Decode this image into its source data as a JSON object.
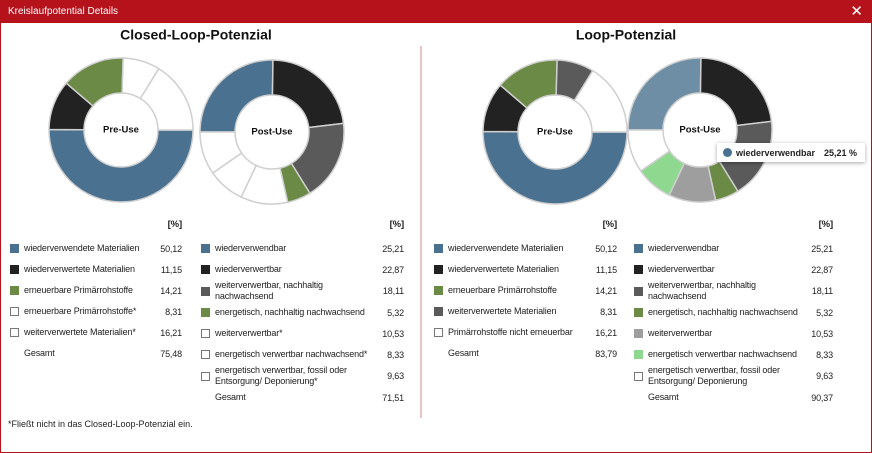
{
  "window": {
    "title": "Kreislaufpotential Details"
  },
  "panels": [
    {
      "title": "Closed-Loop-Potenzial",
      "charts": [
        {
          "center_label": "Pre-Use",
          "unit": "[%]",
          "rows": [
            {
              "name": "wiederverwendete Materialien",
              "value": {
                "value": 50.12,
                "label": "50,12"
              },
              "color": "#4a7290"
            },
            {
              "name": "wiederverwertete Materialien",
              "value": {
                "value": 11.15,
                "label": "11,15"
              },
              "color": "#222222"
            },
            {
              "name": "erneuerbare Primärrohstoffe",
              "value": {
                "value": 14.21,
                "label": "14,21"
              },
              "color": "#6a8a45"
            },
            {
              "name": "erneuerbare Primärrohstoffe*",
              "value": {
                "value": 8.31,
                "label": "8,31"
              },
              "color": "#ffffff"
            },
            {
              "name": "weiterverwertete Materialien*",
              "value": {
                "value": 16.21,
                "label": "16,21"
              },
              "color": "#ffffff"
            }
          ],
          "total": {
            "name": "Gesamt",
            "value": {
              "value": 75.48,
              "label": "75,48"
            }
          }
        },
        {
          "center_label": "Post-Use",
          "unit": "[%]",
          "rows": [
            {
              "name": "wiederverwendbar",
              "value": {
                "value": 25.21,
                "label": "25,21"
              },
              "color": "#4a7290"
            },
            {
              "name": "wiederverwertbar",
              "value": {
                "value": 22.87,
                "label": "22,87"
              },
              "color": "#222222"
            },
            {
              "name": "weiterverwertbar, nachhaltig nachwachsend",
              "value": {
                "value": 18.11,
                "label": "18,11"
              },
              "color": "#5a5a5a"
            },
            {
              "name": "energetisch, nachhaltig nachwachsend",
              "value": {
                "value": 5.32,
                "label": "5,32"
              },
              "color": "#6a8a45"
            },
            {
              "name": "weiterverwertbar*",
              "value": {
                "value": 10.53,
                "label": "10,53"
              },
              "color": "#ffffff"
            },
            {
              "name": "energetisch verwertbar nachwachsend*",
              "value": {
                "value": 8.33,
                "label": "8,33"
              },
              "color": "#ffffff"
            },
            {
              "name": "energetisch verwertbar, fossil oder Entsorgung/ Deponierung*",
              "value": {
                "value": 9.63,
                "label": "9,63"
              },
              "color": "#ffffff"
            }
          ],
          "total": {
            "name": "Gesamt",
            "value": {
              "value": 71.51,
              "label": "71,51"
            }
          }
        }
      ]
    },
    {
      "title": "Loop-Potenzial",
      "charts": [
        {
          "center_label": "Pre-Use",
          "unit": "[%]",
          "rows": [
            {
              "name": "wiederverwendete Materialien",
              "value": {
                "value": 50.12,
                "label": "50,12"
              },
              "color": "#4a7290"
            },
            {
              "name": "wiederverwertete Materialien",
              "value": {
                "value": 11.15,
                "label": "11,15"
              },
              "color": "#222222"
            },
            {
              "name": "erneuerbare Primärrohstoffe",
              "value": {
                "value": 14.21,
                "label": "14,21"
              },
              "color": "#6a8a45"
            },
            {
              "name": "weiterverwertete Materialien",
              "value": {
                "value": 8.31,
                "label": "8,31"
              },
              "color": "#5a5a5a"
            },
            {
              "name": "Primärrohstoffe nicht erneuerbar",
              "value": {
                "value": 16.21,
                "label": "16,21"
              },
              "color": "#ffffff"
            }
          ],
          "total": {
            "name": "Gesamt",
            "value": {
              "value": 83.79,
              "label": "83,79"
            }
          }
        },
        {
          "center_label": "Post-Use",
          "unit": "[%]",
          "rows": [
            {
              "name": "wiederverwendbar",
              "value": {
                "value": 25.21,
                "label": "25,21"
              },
              "color": "#4a7290"
            },
            {
              "name": "wiederverwertbar",
              "value": {
                "value": 22.87,
                "label": "22,87"
              },
              "color": "#222222"
            },
            {
              "name": "weiterverwertbar, nachhaltig nachwachsend",
              "value": {
                "value": 18.11,
                "label": "18,11"
              },
              "color": "#5a5a5a"
            },
            {
              "name": "energetisch, nachhaltig nachwachsend",
              "value": {
                "value": 5.32,
                "label": "5,32"
              },
              "color": "#6a8a45"
            },
            {
              "name": "weiterverwertbar",
              "value": {
                "value": 10.53,
                "label": "10,53"
              },
              "color": "#9e9e9e"
            },
            {
              "name": "energetisch verwertbar nachwachsend",
              "value": {
                "value": 8.33,
                "label": "8,33"
              },
              "color": "#8fd88f"
            },
            {
              "name": "energetisch verwertbar, fossil oder Entsorgung/ Deponierung",
              "value": {
                "value": 9.63,
                "label": "9,63"
              },
              "color": "#ffffff"
            }
          ],
          "total": {
            "name": "Gesamt",
            "value": {
              "value": 90.37,
              "label": "90,37"
            }
          }
        }
      ]
    }
  ],
  "tooltip": {
    "label": "wiederverwendbar",
    "value": "25,21 %"
  },
  "footnote": "*Fließt nicht in das Closed-Loop-Potenzial ein."
}
